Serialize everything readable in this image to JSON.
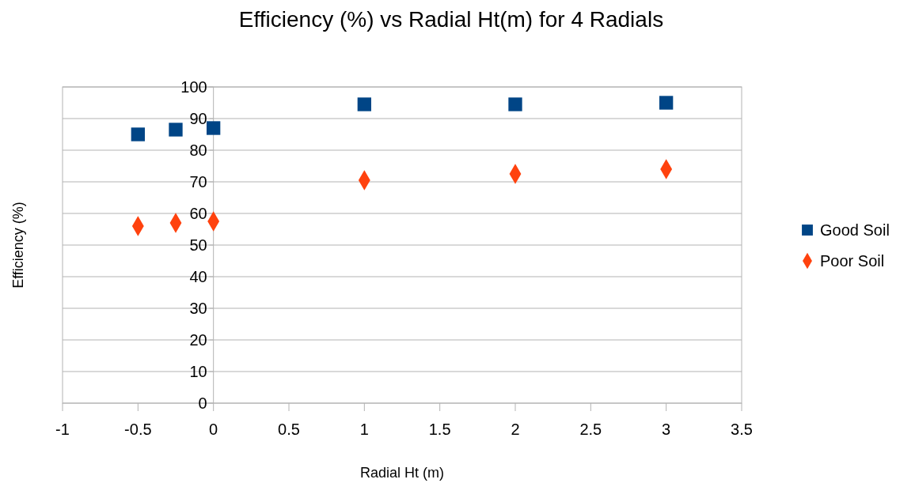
{
  "chart_data": {
    "type": "scatter",
    "title": "Efficiency (%) vs Radial Ht(m) for 4 Radials",
    "xlabel": "Radial Ht (m)",
    "ylabel": "Efficiency (%)",
    "x": [
      -0.5,
      -0.25,
      0,
      1,
      2,
      3
    ],
    "series": [
      {
        "name": "Good Soil",
        "color": "#004586",
        "marker": "square",
        "values": [
          85,
          86.5,
          87,
          94.5,
          94.5,
          95
        ]
      },
      {
        "name": "Poor Soil",
        "color": "#ff420e",
        "marker": "diamond",
        "values": [
          56,
          57,
          57.5,
          70.5,
          72.5,
          74
        ]
      }
    ],
    "xlim": [
      -1,
      3.5
    ],
    "xticks": [
      -1,
      -0.5,
      0,
      0.5,
      1,
      1.5,
      2,
      2.5,
      3,
      3.5
    ],
    "ylim": [
      0,
      100
    ],
    "yticks": [
      0,
      10,
      20,
      30,
      40,
      50,
      60,
      70,
      80,
      90,
      100
    ],
    "grid": "y",
    "legend": "right"
  }
}
